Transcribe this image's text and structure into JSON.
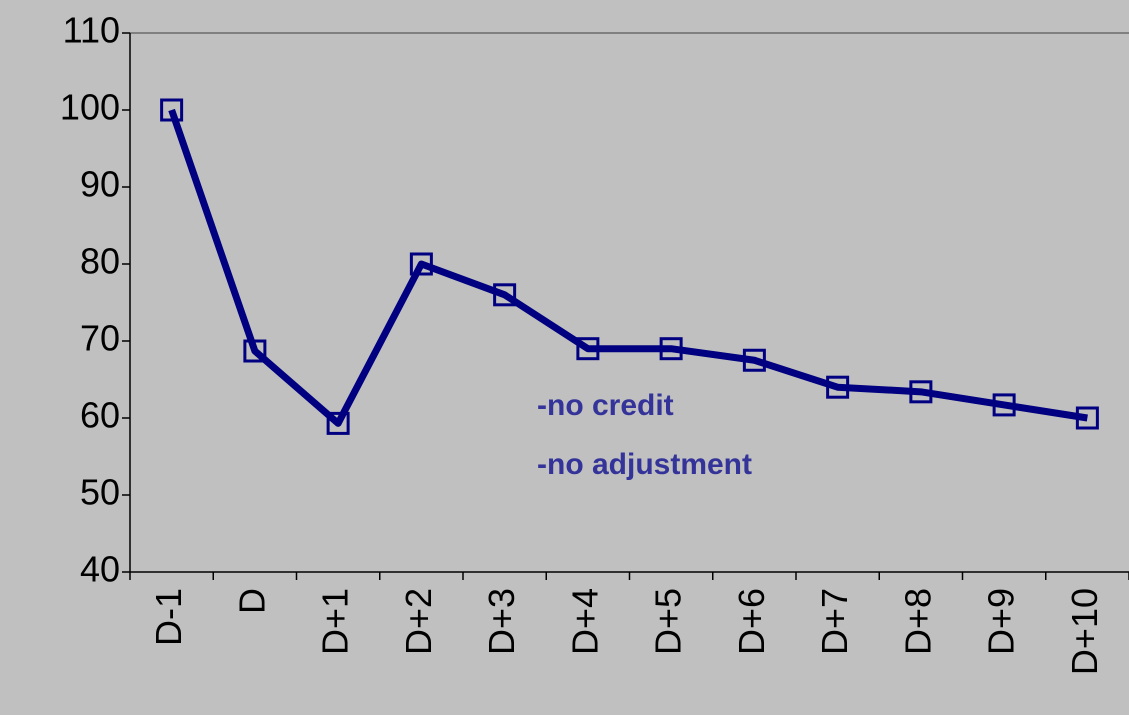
{
  "chart_data": {
    "type": "line",
    "categories": [
      "D-1",
      "D",
      "D+1",
      "D+2",
      "D+3",
      "D+4",
      "D+5",
      "D+6",
      "D+7",
      "D+8",
      "D+9",
      "D+10"
    ],
    "series": [
      {
        "color": "#000080",
        "values": [
          100,
          68.7,
          59.3,
          80,
          76,
          69,
          69,
          67.5,
          64,
          63.4,
          61.7,
          60
        ]
      }
    ],
    "ylim": [
      40,
      110
    ],
    "yticks": [
      40,
      50,
      60,
      70,
      80,
      90,
      100,
      110
    ],
    "annotations": [
      "-no credit",
      "-no adjustment"
    ],
    "annotation_color": "#333399"
  }
}
